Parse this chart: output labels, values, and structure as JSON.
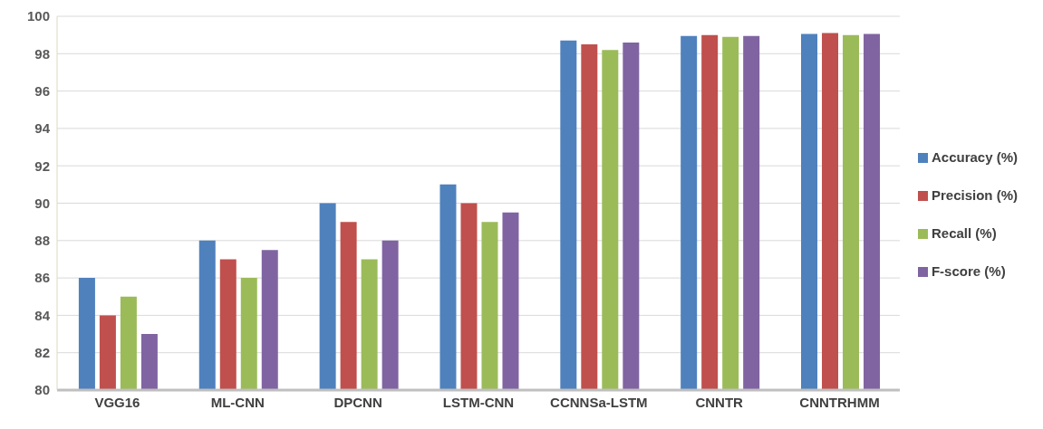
{
  "chart_data": {
    "type": "bar",
    "categories": [
      "VGG16",
      "ML-CNN",
      "DPCNN",
      "LSTM-CNN",
      "CCNNSa-LSTM",
      "CNNTR",
      "CNNTRHMM"
    ],
    "series": [
      {
        "name": "Accuracy (%)",
        "color": "#4f81bd",
        "values": [
          86,
          88,
          90,
          91,
          98.7,
          98.95,
          99.05
        ]
      },
      {
        "name": "Precision (%)",
        "color": "#c0504d",
        "values": [
          84,
          87,
          89,
          90,
          98.5,
          99.0,
          99.1
        ]
      },
      {
        "name": "Recall (%)",
        "color": "#9bbb59",
        "values": [
          85,
          86,
          87,
          89,
          98.2,
          98.9,
          99.0
        ]
      },
      {
        "name": "F-score (%)",
        "color": "#8064a2",
        "values": [
          83,
          87.5,
          88,
          89.5,
          98.6,
          98.95,
          99.05
        ]
      }
    ],
    "ylim": [
      80,
      100
    ],
    "yticks": [
      80,
      82,
      84,
      86,
      88,
      90,
      92,
      94,
      96,
      98,
      100
    ],
    "grid": "y",
    "legend": "right"
  }
}
